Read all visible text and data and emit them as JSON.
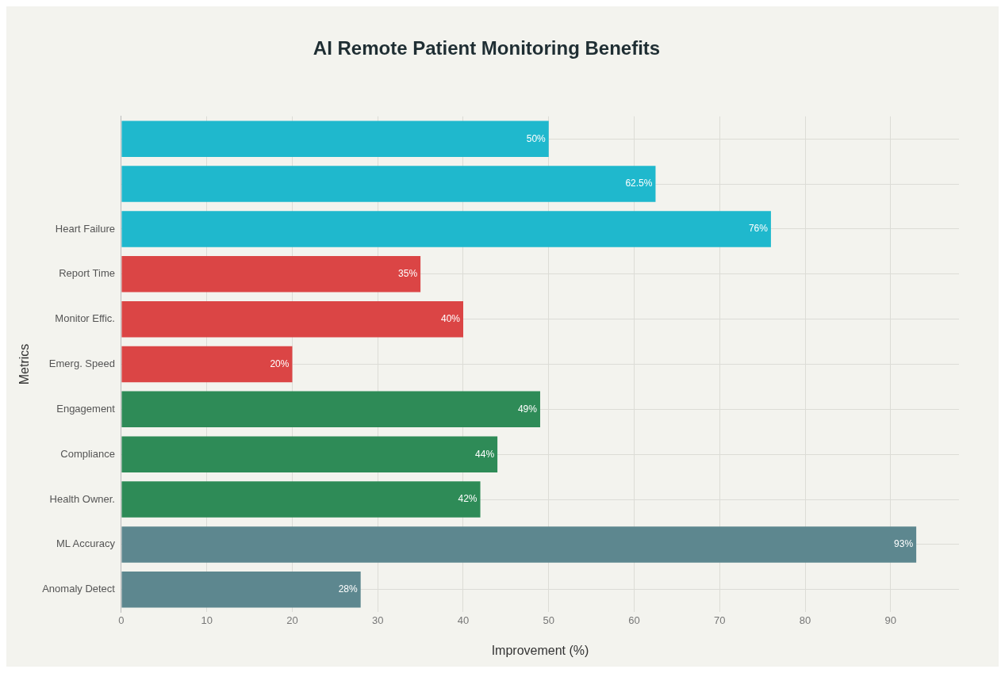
{
  "chart_data": {
    "type": "bar",
    "orientation": "horizontal",
    "title": "AI Remote Patient Monitoring Benefits",
    "xlabel": "Improvement (%)",
    "ylabel": "Metrics",
    "categories": [
      null,
      null,
      "Heart Failure",
      "Report Time",
      "Monitor Effic.",
      "Emerg. Speed",
      "Engagement",
      "Compliance",
      "Health Owner.",
      "ML Accuracy",
      "Anomaly Detect"
    ],
    "values": [
      50,
      62.5,
      76,
      35,
      40,
      20,
      49,
      44,
      42,
      93,
      28
    ],
    "colors": [
      "#1fb8cd",
      "#1fb8cd",
      "#1fb8cd",
      "#db4545",
      "#db4545",
      "#db4545",
      "#2e8b57",
      "#2e8b57",
      "#2e8b57",
      "#5d878f",
      "#5d878f"
    ],
    "value_labels": [
      "50%",
      "62.5%",
      "76%",
      "35%",
      "40%",
      "20%",
      "49%",
      "44%",
      "42%",
      "93%",
      "28%"
    ],
    "xlim": [
      0,
      98
    ],
    "xticks": [
      0,
      10,
      20,
      30,
      40,
      50,
      60,
      70,
      80,
      90
    ],
    "grid": true,
    "legend": false
  }
}
